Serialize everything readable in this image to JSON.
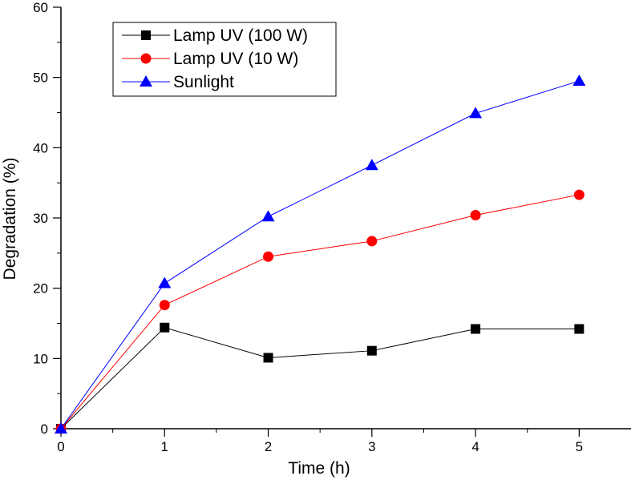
{
  "chart_data": {
    "type": "line",
    "title": "",
    "xlabel": "Time (h)",
    "ylabel": "Degradation (%)",
    "xlim": [
      0,
      5.5
    ],
    "ylim": [
      0,
      60
    ],
    "x_ticks": [
      0,
      1,
      2,
      3,
      4,
      5
    ],
    "y_ticks": [
      0,
      10,
      20,
      30,
      40,
      50,
      60
    ],
    "grid": false,
    "legend_position": "top-left",
    "x": [
      0,
      1,
      2,
      3,
      4,
      5
    ],
    "series": [
      {
        "name": "Lamp UV (100 W)",
        "color": "#000000",
        "marker": "square",
        "values": [
          0,
          14.4,
          10.1,
          11.1,
          14.2,
          14.2
        ]
      },
      {
        "name": "Lamp UV  (10 W)",
        "color": "#ff0000",
        "marker": "circle",
        "values": [
          0,
          17.6,
          24.5,
          26.7,
          30.4,
          33.3
        ]
      },
      {
        "name": "Sunlight",
        "color": "#0000ff",
        "marker": "triangle",
        "values": [
          0,
          20.7,
          30.2,
          37.5,
          44.9,
          49.5
        ]
      }
    ]
  }
}
